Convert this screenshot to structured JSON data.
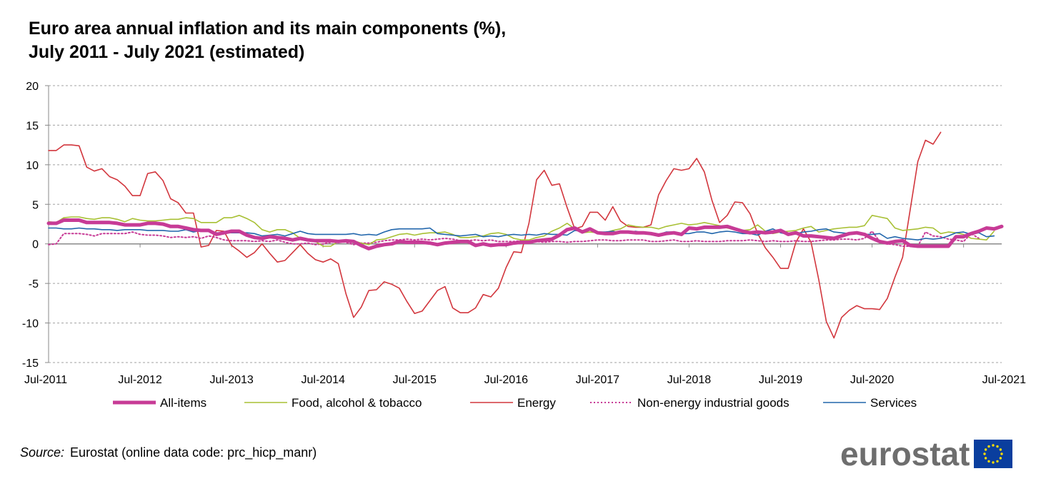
{
  "title_line1": "Euro area annual inflation and its main components (%),",
  "title_line2": "July 2011 - July 2021 (estimated)",
  "source_label": "Source:",
  "source_text": "Eurostat (online data code: prc_hicp_manr)",
  "logo_text": "eurostat",
  "colors": {
    "all_items": "#C73B96",
    "food": "#A8C034",
    "energy": "#D2363D",
    "non_energy": "#C73B96",
    "services": "#2166AC",
    "flag_blue": "#0A3E9E",
    "flag_star": "#FFDD00",
    "grid": "#A0A0A0"
  },
  "chart_data": {
    "type": "line",
    "ylim": [
      -15,
      20
    ],
    "yticks": [
      -15,
      -10,
      -5,
      0,
      5,
      10,
      15,
      20
    ],
    "x_tick_labels": [
      "Jul-2011",
      "Jul-2012",
      "Jul-2013",
      "Jul-2014",
      "Jul-2015",
      "Jul-2016",
      "Jul-2017",
      "Jul-2018",
      "Jul-2019",
      "Jul-2020",
      "Jul-2021"
    ],
    "x_start": "Jul-2011",
    "x_end": "Jul-2021",
    "frequency": "monthly",
    "legend_position": "bottom",
    "grid": "horizontal dashed",
    "series": [
      {
        "name": "All-items",
        "key": "all_items",
        "style": "thick",
        "values": [
          2.6,
          2.6,
          3.0,
          3.0,
          3.0,
          2.7,
          2.7,
          2.7,
          2.7,
          2.6,
          2.4,
          2.4,
          2.4,
          2.6,
          2.6,
          2.5,
          2.2,
          2.2,
          2.0,
          1.8,
          1.7,
          1.7,
          1.2,
          1.4,
          1.6,
          1.6,
          1.1,
          0.8,
          0.7,
          0.9,
          0.8,
          0.7,
          0.5,
          0.7,
          0.5,
          0.4,
          0.4,
          0.4,
          0.3,
          0.4,
          0.3,
          -0.2,
          -0.6,
          -0.3,
          -0.1,
          0.0,
          0.3,
          0.2,
          0.2,
          0.2,
          0.1,
          -0.1,
          0.1,
          0.2,
          0.3,
          0.3,
          -0.2,
          0.0,
          -0.2,
          -0.1,
          -0.1,
          0.1,
          0.2,
          0.2,
          0.4,
          0.5,
          0.6,
          1.1,
          1.8,
          2.0,
          1.5,
          1.9,
          1.4,
          1.3,
          1.3,
          1.5,
          1.5,
          1.4,
          1.4,
          1.3,
          1.1,
          1.3,
          1.4,
          1.2,
          2.0,
          1.9,
          2.1,
          2.1,
          2.1,
          2.2,
          1.9,
          1.6,
          1.4,
          1.5,
          1.4,
          1.5,
          1.7,
          1.2,
          1.4,
          1.0,
          1.0,
          0.9,
          0.8,
          0.7,
          1.0,
          1.3,
          1.4,
          1.2,
          0.7,
          0.3,
          0.1,
          0.3,
          0.4,
          -0.2,
          -0.3,
          -0.3,
          -0.3,
          -0.3,
          -0.3,
          0.9,
          0.9,
          1.3,
          1.6,
          2.0,
          1.9,
          2.2
        ]
      },
      {
        "name": "Food, alcohol & tobacco",
        "key": "food",
        "style": "thin",
        "values": [
          2.8,
          2.7,
          3.3,
          3.4,
          3.4,
          3.2,
          3.1,
          3.3,
          3.3,
          3.1,
          2.8,
          3.2,
          3.0,
          2.9,
          2.9,
          3.0,
          3.1,
          3.1,
          3.3,
          3.2,
          2.7,
          2.7,
          2.7,
          3.3,
          3.3,
          3.6,
          3.2,
          2.7,
          1.8,
          1.5,
          1.8,
          1.8,
          1.4,
          0.7,
          0.4,
          0.3,
          -0.3,
          -0.3,
          0.3,
          0.5,
          0.4,
          0.1,
          -0.1,
          0.5,
          0.6,
          0.9,
          1.2,
          1.3,
          1.1,
          1.3,
          1.4,
          1.4,
          1.5,
          1.2,
          0.8,
          0.8,
          0.9,
          1.0,
          1.3,
          1.4,
          1.2,
          0.7,
          0.5,
          0.5,
          0.8,
          1.0,
          1.6,
          2.0,
          2.6,
          1.9,
          1.4,
          1.5,
          1.4,
          1.4,
          1.7,
          1.9,
          2.4,
          2.2,
          2.1,
          2.1,
          1.9,
          2.2,
          2.4,
          2.6,
          2.4,
          2.5,
          2.7,
          2.5,
          2.3,
          2.0,
          1.8,
          1.7,
          1.8,
          2.4,
          1.6,
          1.3,
          1.5,
          1.6,
          1.7,
          2.0,
          2.2,
          1.5,
          1.7,
          1.9,
          2.0,
          2.1,
          2.1,
          2.3,
          3.6,
          3.4,
          3.2,
          2.0,
          1.7,
          1.8,
          1.9,
          2.1,
          2.0,
          1.3,
          1.5,
          1.4,
          1.2,
          0.7,
          0.6,
          0.5,
          1.6
        ]
      },
      {
        "name": "Energy",
        "key": "energy",
        "style": "thin",
        "values": [
          11.8,
          11.8,
          12.5,
          12.5,
          12.4,
          9.7,
          9.2,
          9.5,
          8.5,
          8.1,
          7.3,
          6.1,
          6.1,
          8.9,
          9.1,
          8.0,
          5.7,
          5.2,
          3.9,
          3.9,
          -0.4,
          -0.2,
          1.7,
          1.6,
          -0.2,
          -0.9,
          -1.7,
          -1.1,
          0.0,
          -1.2,
          -2.3,
          -2.1,
          -1.1,
          -0.1,
          -1.2,
          -2.0,
          -2.3,
          -1.9,
          -2.5,
          -6.3,
          -9.3,
          -8.0,
          -5.9,
          -5.8,
          -4.8,
          -5.1,
          -5.6,
          -7.3,
          -8.8,
          -8.5,
          -7.2,
          -5.9,
          -5.4,
          -8.1,
          -8.7,
          -8.7,
          -8.1,
          -6.4,
          -6.7,
          -5.6,
          -3.0,
          -1.0,
          -1.1,
          2.6,
          8.1,
          9.3,
          7.4,
          7.6,
          4.6,
          1.9,
          2.2,
          4.0,
          4.0,
          3.0,
          4.7,
          2.9,
          2.2,
          2.1,
          2.1,
          2.4,
          6.2,
          8.0,
          9.5,
          9.3,
          9.5,
          10.8,
          9.1,
          5.5,
          2.7,
          3.6,
          5.3,
          5.2,
          3.8,
          1.3,
          -0.5,
          -1.7,
          -3.1,
          -3.1,
          0.2,
          1.9,
          0.2,
          -4.5,
          -9.8,
          -11.9,
          -9.3,
          -8.4,
          -7.8,
          -8.2,
          -8.2,
          -8.3,
          -6.9,
          -4.2,
          -1.7,
          4.3,
          10.4,
          13.1,
          12.6,
          14.1
        ]
      },
      {
        "name": "Non-energy industrial goods",
        "key": "non_energy",
        "style": "dotted",
        "values": [
          -0.1,
          0.0,
          1.3,
          1.3,
          1.3,
          1.2,
          1.0,
          1.3,
          1.3,
          1.3,
          1.3,
          1.5,
          1.2,
          1.1,
          1.1,
          1.0,
          0.8,
          0.9,
          0.8,
          0.9,
          0.7,
          1.0,
          0.8,
          0.5,
          0.4,
          0.4,
          0.4,
          0.3,
          0.4,
          0.3,
          0.5,
          0.2,
          0.0,
          0.0,
          0.1,
          -0.1,
          0.0,
          0.2,
          0.3,
          0.2,
          -0.1,
          0.1,
          0.1,
          0.2,
          0.4,
          0.5,
          0.5,
          0.6,
          0.5,
          0.6,
          0.5,
          0.6,
          0.7,
          0.6,
          0.4,
          0.4,
          0.5,
          0.4,
          0.5,
          0.3,
          0.3,
          0.3,
          0.4,
          0.3,
          0.3,
          0.2,
          0.3,
          0.3,
          0.2,
          0.3,
          0.3,
          0.4,
          0.5,
          0.5,
          0.4,
          0.4,
          0.5,
          0.5,
          0.5,
          0.3,
          0.3,
          0.4,
          0.5,
          0.3,
          0.3,
          0.4,
          0.3,
          0.3,
          0.3,
          0.4,
          0.4,
          0.4,
          0.5,
          0.4,
          0.3,
          0.4,
          0.3,
          0.3,
          0.4,
          0.3,
          0.3,
          0.4,
          0.5,
          0.5,
          0.6,
          0.6,
          0.5,
          0.7,
          1.6,
          0.3,
          0.0,
          -0.1,
          -0.3,
          -0.3,
          -0.3,
          1.5,
          1.0,
          0.9,
          0.6,
          0.5,
          0.3,
          1.3,
          0.7
        ]
      },
      {
        "name": "Services",
        "key": "services",
        "style": "thin",
        "values": [
          2.0,
          2.0,
          1.9,
          1.9,
          2.0,
          1.9,
          1.9,
          1.8,
          1.8,
          1.7,
          1.8,
          1.8,
          1.8,
          1.7,
          1.7,
          1.7,
          1.6,
          1.6,
          1.8,
          1.5,
          1.7,
          1.7,
          1.4,
          1.4,
          1.4,
          1.4,
          1.4,
          1.3,
          1.0,
          1.1,
          1.2,
          1.0,
          1.3,
          1.6,
          1.3,
          1.2,
          1.2,
          1.2,
          1.2,
          1.2,
          1.3,
          1.1,
          1.2,
          1.1,
          1.5,
          1.8,
          1.9,
          1.9,
          1.9,
          1.9,
          2.0,
          1.3,
          1.2,
          1.1,
          1.0,
          1.1,
          1.2,
          0.9,
          1.0,
          0.9,
          1.1,
          1.2,
          1.1,
          1.2,
          1.1,
          1.3,
          1.2,
          1.2,
          1.1,
          1.7,
          1.6,
          1.8,
          1.5,
          1.5,
          1.6,
          1.4,
          1.5,
          1.6,
          1.4,
          1.3,
          1.2,
          1.5,
          1.5,
          1.3,
          1.3,
          1.5,
          1.5,
          1.3,
          1.5,
          1.6,
          1.5,
          1.3,
          1.3,
          1.1,
          1.6,
          1.9,
          1.4,
          1.2,
          1.3,
          1.5,
          1.6,
          1.8,
          1.9,
          1.5,
          1.4,
          1.3,
          1.3,
          1.2,
          1.2,
          1.3,
          0.7,
          0.9,
          0.7,
          0.6,
          0.5,
          0.7,
          0.6,
          0.7,
          1.0,
          1.4,
          1.5,
          1.2,
          1.4,
          0.9,
          1.0
        ]
      }
    ]
  }
}
